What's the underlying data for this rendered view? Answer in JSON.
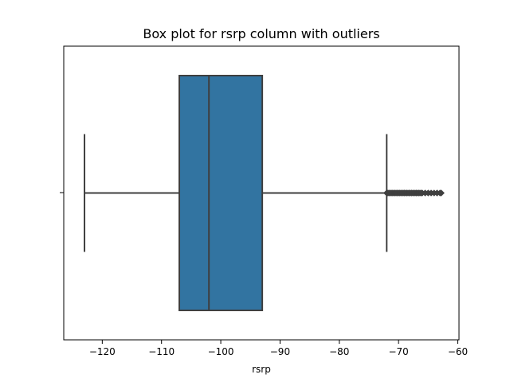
{
  "chart_data": {
    "type": "box",
    "title": "Box plot for rsrp column with outliers",
    "xlabel": "rsrp",
    "ylabel": "",
    "xlim": [
      -126.5,
      -59.8
    ],
    "xticks": [
      -120,
      -110,
      -100,
      -90,
      -80,
      -70,
      -60
    ],
    "xtick_labels": [
      "−120",
      "−110",
      "−100",
      "−90",
      "−80",
      "−70",
      "−60"
    ],
    "box": {
      "whisker_low": -123,
      "q1": -107,
      "median": -102,
      "q3": -93,
      "whisker_high": -72
    },
    "outliers": [
      -72,
      -71.8,
      -71.6,
      -71.4,
      -71.2,
      -71,
      -70.8,
      -70.6,
      -70.4,
      -70.2,
      -70,
      -69.8,
      -69.6,
      -69.4,
      -69.2,
      -69,
      -68.8,
      -68.6,
      -68.4,
      -68.2,
      -68,
      -67.8,
      -67.6,
      -67.4,
      -67.2,
      -67,
      -66.8,
      -66.6,
      -66.4,
      -66.2,
      -66,
      -65.5,
      -65,
      -64.5,
      -64,
      -63.5,
      -63,
      -62.8
    ],
    "box_color": "#3274a1",
    "line_color": "#3f3f3f",
    "grid": false,
    "legend": "none"
  }
}
